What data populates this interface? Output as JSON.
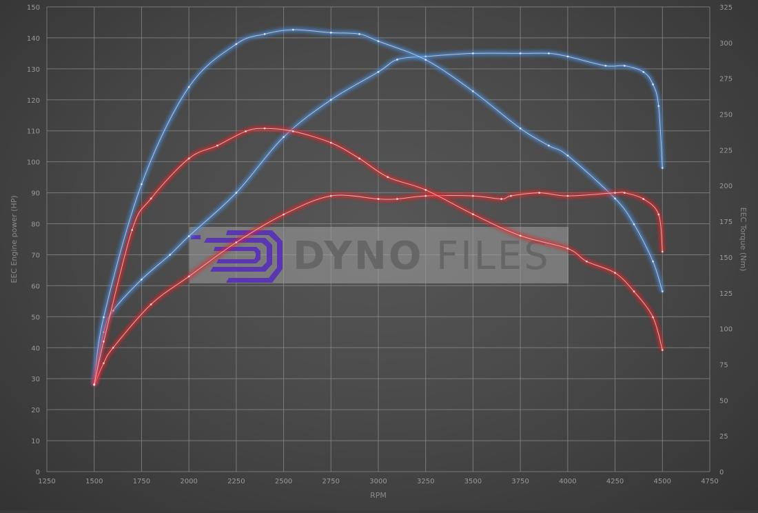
{
  "chart_data": {
    "type": "line",
    "xlabel": "RPM",
    "ylabel": "EEC Engine power (HP)",
    "y2label": "EEC Torque (Nm)",
    "xlim": [
      1250,
      4750
    ],
    "ylim": [
      0,
      150
    ],
    "y2lim": [
      0,
      325
    ],
    "xticks": [
      1250,
      1500,
      1750,
      2000,
      2250,
      2500,
      2750,
      3000,
      3250,
      3500,
      3750,
      4000,
      4250,
      4500,
      4750
    ],
    "yticks": [
      0,
      10,
      20,
      30,
      40,
      50,
      60,
      70,
      80,
      90,
      100,
      110,
      120,
      130,
      140,
      150
    ],
    "y2ticks": [
      0,
      25,
      50,
      75,
      100,
      125,
      150,
      175,
      200,
      225,
      250,
      275,
      300,
      325
    ],
    "grid": true,
    "colors": {
      "tuned": "#4a8fe0",
      "stock": "#e8252a"
    },
    "series": [
      {
        "axis": "left",
        "color": "#4a8fe0",
        "x": [
          1500,
          1550,
          1600,
          1750,
          1900,
          2000,
          2250,
          2500,
          2750,
          3000,
          3100,
          3250,
          3500,
          3750,
          3900,
          4000,
          4200,
          4300,
          4400,
          4450,
          4480,
          4500
        ],
        "y": [
          28,
          45,
          52,
          62,
          70,
          76,
          90,
          108,
          120,
          129,
          133,
          134,
          135,
          135,
          135,
          134,
          131,
          131,
          129,
          125,
          118,
          98
        ]
      },
      {
        "axis": "right",
        "color": "#4a8fe0",
        "x": [
          1500,
          1550,
          1750,
          2000,
          2250,
          2400,
          2550,
          2750,
          2900,
          3000,
          3250,
          3500,
          3750,
          3900,
          4000,
          4250,
          4350,
          4450,
          4500
        ],
        "y": [
          61,
          108,
          201,
          269,
          299,
          306,
          309,
          307,
          306,
          301,
          288,
          266,
          240,
          228,
          221,
          191,
          173,
          147,
          126
        ]
      },
      {
        "axis": "left",
        "color": "#e8252a",
        "x": [
          1500,
          1550,
          1600,
          1800,
          2000,
          2250,
          2500,
          2750,
          3000,
          3100,
          3250,
          3500,
          3650,
          3700,
          3850,
          4000,
          4250,
          4300,
          4400,
          4480,
          4500
        ],
        "y": [
          28,
          35,
          40,
          54,
          63,
          74,
          83,
          89,
          88,
          88,
          89,
          89,
          88,
          89,
          90,
          89,
          90,
          90,
          88,
          83,
          71
        ]
      },
      {
        "axis": "right",
        "color": "#e8252a",
        "x": [
          1500,
          1550,
          1700,
          1800,
          2000,
          2150,
          2300,
          2400,
          2550,
          2750,
          2900,
          3050,
          3250,
          3500,
          3750,
          4000,
          4100,
          4250,
          4350,
          4450,
          4500
        ],
        "y": [
          61,
          91,
          169,
          191,
          219,
          228,
          238,
          240,
          238,
          230,
          219,
          206,
          197,
          180,
          165,
          156,
          147,
          139,
          126,
          108,
          85
        ]
      }
    ]
  },
  "watermark": {
    "text_bold": "DYNO",
    "text_light": "FILES"
  }
}
